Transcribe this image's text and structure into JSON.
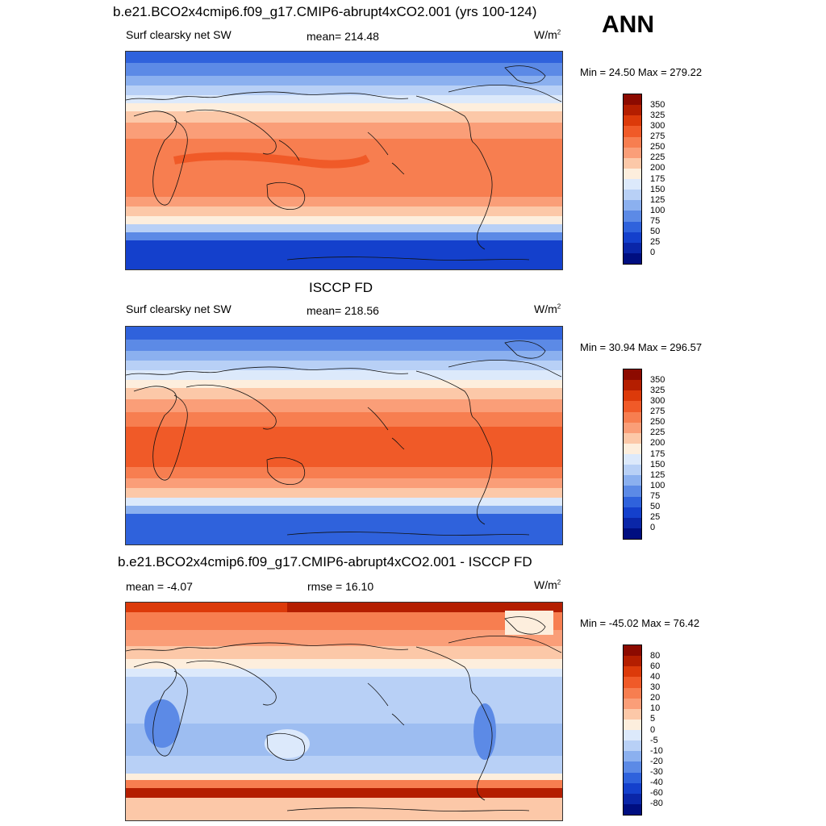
{
  "header": {
    "main_title": "b.e21.BCO2x4cmip6.f09_g17.CMIP6-abrupt4xCO2.001 (yrs 100-124)",
    "season": "ANN"
  },
  "panels": [
    {
      "title": "",
      "left_label": "Surf clearsky net SW",
      "center_label": "mean= 214.48",
      "units": "W/m",
      "units_sup": "2",
      "minmax": "Min =  24.50 Max = 279.22",
      "colorbar": {
        "labels": [
          "350",
          "325",
          "300",
          "275",
          "250",
          "225",
          "200",
          "175",
          "150",
          "125",
          "100",
          "75",
          "50",
          "25",
          "0"
        ],
        "colors": [
          "#8c0a00",
          "#b41e00",
          "#dc3a0a",
          "#f05a28",
          "#f77e50",
          "#fa9e78",
          "#fcc8a8",
          "#fdeedd",
          "#dce9fb",
          "#b8d0f6",
          "#8bb0ef",
          "#5c8ae6",
          "#2f62dc",
          "#1440cc",
          "#0a26a8",
          "#000e80"
        ]
      }
    },
    {
      "title": "ISCCP FD",
      "left_label": "Surf clearsky net SW",
      "center_label": "mean= 218.56",
      "units": "W/m",
      "units_sup": "2",
      "minmax": "Min =  30.94 Max = 296.57",
      "colorbar": {
        "labels": [
          "350",
          "325",
          "300",
          "275",
          "250",
          "225",
          "200",
          "175",
          "150",
          "125",
          "100",
          "75",
          "50",
          "25",
          "0"
        ],
        "colors": [
          "#8c0a00",
          "#b41e00",
          "#dc3a0a",
          "#f05a28",
          "#f77e50",
          "#fa9e78",
          "#fcc8a8",
          "#fdeedd",
          "#dce9fb",
          "#b8d0f6",
          "#8bb0ef",
          "#5c8ae6",
          "#2f62dc",
          "#1440cc",
          "#0a26a8",
          "#000e80"
        ]
      }
    },
    {
      "title": "b.e21.BCO2x4cmip6.f09_g17.CMIP6-abrupt4xCO2.001 - ISCCP FD",
      "left_label": "mean =  -4.07",
      "center_label": "rmse =  16.10",
      "units": "W/m",
      "units_sup": "2",
      "minmax": "Min = -45.02 Max =  76.42",
      "colorbar": {
        "labels": [
          "80",
          "60",
          "40",
          "30",
          "20",
          "10",
          "5",
          "0",
          "-5",
          "-10",
          "-20",
          "-30",
          "-40",
          "-60",
          "-80"
        ],
        "colors": [
          "#8c0a00",
          "#b41e00",
          "#dc3a0a",
          "#f05a28",
          "#f77e50",
          "#fa9e78",
          "#fcc8a8",
          "#fdeedd",
          "#dce9fb",
          "#b8d0f6",
          "#8bb0ef",
          "#5c8ae6",
          "#2f62dc",
          "#1440cc",
          "#0a26a8",
          "#000e80"
        ]
      }
    }
  ]
}
